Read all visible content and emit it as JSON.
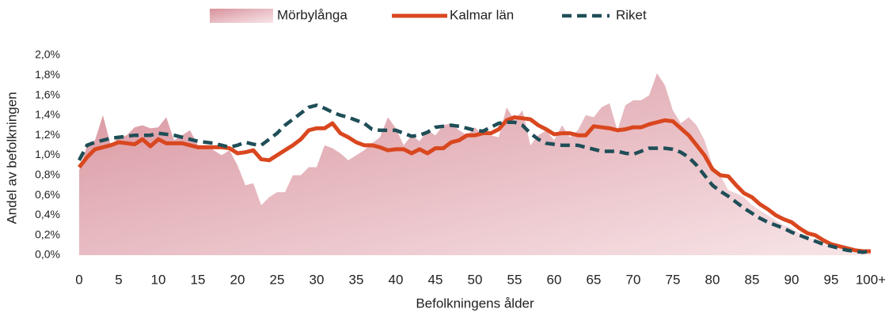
{
  "chart_data": {
    "type": "line",
    "xlabel": "Befolkningens ålder",
    "ylabel": "Andel av befolkningen",
    "legend": "top",
    "categories": [
      "0",
      null,
      null,
      null,
      null,
      "5",
      null,
      null,
      null,
      null,
      "10",
      null,
      null,
      null,
      null,
      "15",
      null,
      null,
      null,
      null,
      "20",
      null,
      null,
      null,
      null,
      "25",
      null,
      null,
      null,
      null,
      "30",
      null,
      null,
      null,
      null,
      "35",
      null,
      null,
      null,
      null,
      "40",
      null,
      null,
      null,
      null,
      "45",
      null,
      null,
      null,
      null,
      "50",
      null,
      null,
      null,
      null,
      "55",
      null,
      null,
      null,
      null,
      "60",
      null,
      null,
      null,
      null,
      "65",
      null,
      null,
      null,
      null,
      "70",
      null,
      null,
      null,
      null,
      "75",
      null,
      null,
      null,
      null,
      "80",
      null,
      null,
      null,
      null,
      "85",
      null,
      null,
      null,
      null,
      "90",
      null,
      null,
      null,
      null,
      "95",
      null,
      null,
      null,
      null,
      "100+"
    ],
    "ylim": [
      0,
      2.0
    ],
    "yticks": [
      {
        "value": 0,
        "label": "0,0%"
      },
      {
        "value": 0.2,
        "label": "0,2%"
      },
      {
        "value": 0.4,
        "label": "0,4%"
      },
      {
        "value": 0.6,
        "label": "0,6%"
      },
      {
        "value": 0.8,
        "label": "0,8%"
      },
      {
        "value": 1.0,
        "label": "1,0%"
      },
      {
        "value": 1.2,
        "label": "1,2%"
      },
      {
        "value": 1.4,
        "label": "1,4%"
      },
      {
        "value": 1.6,
        "label": "1,6%"
      },
      {
        "value": 1.8,
        "label": "1,8%"
      },
      {
        "value": 2.0,
        "label": "2,0%"
      }
    ],
    "series": [
      {
        "name": "Mörbylånga",
        "style": "area",
        "color": "#dc9aa3",
        "values": [
          0.85,
          1.1,
          1.15,
          1.4,
          1.1,
          1.18,
          1.2,
          1.28,
          1.3,
          1.27,
          1.28,
          1.38,
          1.15,
          1.2,
          1.25,
          1.1,
          1.1,
          1.05,
          1.0,
          1.05,
          0.9,
          0.7,
          0.72,
          0.5,
          0.58,
          0.63,
          0.63,
          0.8,
          0.8,
          0.88,
          0.88,
          1.1,
          1.07,
          1.02,
          0.95,
          1.0,
          1.05,
          1.12,
          1.18,
          1.38,
          1.27,
          1.1,
          1.2,
          1.14,
          1.25,
          1.2,
          1.3,
          1.32,
          1.25,
          1.2,
          1.28,
          1.2,
          1.2,
          1.18,
          1.48,
          1.35,
          1.45,
          1.1,
          1.2,
          1.25,
          1.15,
          1.3,
          1.18,
          1.25,
          1.4,
          1.38,
          1.48,
          1.52,
          1.25,
          1.5,
          1.55,
          1.55,
          1.6,
          1.82,
          1.7,
          1.45,
          1.32,
          1.38,
          1.3,
          1.15,
          0.9,
          0.8,
          0.65,
          0.62,
          0.58,
          0.5,
          0.45,
          0.4,
          0.35,
          0.3,
          0.27,
          0.22,
          0.18,
          0.15,
          0.12,
          0.09,
          0.07,
          0.05,
          0.04,
          0.03,
          0.03
        ]
      },
      {
        "name": "Kalmar län",
        "style": "solid",
        "color": "#d9471f",
        "values": [
          0.88,
          0.98,
          1.06,
          1.08,
          1.1,
          1.13,
          1.12,
          1.11,
          1.16,
          1.09,
          1.16,
          1.12,
          1.12,
          1.12,
          1.1,
          1.08,
          1.08,
          1.08,
          1.08,
          1.07,
          1.02,
          1.03,
          1.05,
          0.96,
          0.95,
          1.0,
          1.05,
          1.1,
          1.16,
          1.25,
          1.27,
          1.27,
          1.32,
          1.22,
          1.18,
          1.13,
          1.1,
          1.1,
          1.08,
          1.05,
          1.06,
          1.06,
          1.02,
          1.06,
          1.02,
          1.07,
          1.07,
          1.13,
          1.15,
          1.2,
          1.2,
          1.22,
          1.22,
          1.26,
          1.35,
          1.38,
          1.37,
          1.36,
          1.3,
          1.26,
          1.21,
          1.22,
          1.22,
          1.2,
          1.2,
          1.29,
          1.28,
          1.27,
          1.25,
          1.26,
          1.28,
          1.28,
          1.31,
          1.33,
          1.35,
          1.34,
          1.27,
          1.2,
          1.1,
          1.0,
          0.86,
          0.8,
          0.79,
          0.7,
          0.62,
          0.58,
          0.51,
          0.46,
          0.4,
          0.36,
          0.33,
          0.27,
          0.22,
          0.2,
          0.15,
          0.11,
          0.09,
          0.07,
          0.05,
          0.04,
          0.04
        ]
      },
      {
        "name": "Riket",
        "style": "dashed",
        "color": "#1f4e57",
        "values": [
          0.95,
          1.1,
          1.13,
          1.15,
          1.17,
          1.18,
          1.19,
          1.2,
          1.2,
          1.2,
          1.22,
          1.21,
          1.2,
          1.18,
          1.16,
          1.14,
          1.13,
          1.12,
          1.1,
          1.08,
          1.1,
          1.13,
          1.11,
          1.1,
          1.16,
          1.22,
          1.3,
          1.36,
          1.42,
          1.48,
          1.5,
          1.47,
          1.43,
          1.4,
          1.38,
          1.35,
          1.32,
          1.26,
          1.25,
          1.25,
          1.25,
          1.22,
          1.19,
          1.2,
          1.23,
          1.28,
          1.29,
          1.3,
          1.29,
          1.27,
          1.25,
          1.24,
          1.28,
          1.32,
          1.33,
          1.33,
          1.3,
          1.22,
          1.16,
          1.12,
          1.11,
          1.1,
          1.1,
          1.1,
          1.08,
          1.06,
          1.04,
          1.04,
          1.04,
          1.02,
          1.01,
          1.04,
          1.07,
          1.07,
          1.07,
          1.06,
          1.03,
          0.98,
          0.9,
          0.8,
          0.7,
          0.64,
          0.59,
          0.53,
          0.47,
          0.42,
          0.37,
          0.33,
          0.3,
          0.27,
          0.23,
          0.2,
          0.17,
          0.14,
          0.11,
          0.09,
          0.07,
          0.05,
          0.04,
          0.03,
          0.04
        ]
      }
    ]
  }
}
